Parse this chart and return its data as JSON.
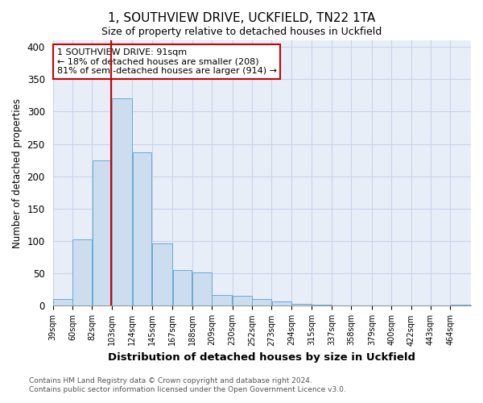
{
  "title": "1, SOUTHVIEW DRIVE, UCKFIELD, TN22 1TA",
  "subtitle": "Size of property relative to detached houses in Uckfield",
  "xlabel": "Distribution of detached houses by size in Uckfield",
  "ylabel": "Number of detached properties",
  "bin_labels": [
    "39sqm",
    "60sqm",
    "82sqm",
    "103sqm",
    "124sqm",
    "145sqm",
    "167sqm",
    "188sqm",
    "209sqm",
    "230sqm",
    "252sqm",
    "273sqm",
    "294sqm",
    "315sqm",
    "337sqm",
    "358sqm",
    "379sqm",
    "400sqm",
    "422sqm",
    "443sqm",
    "464sqm"
  ],
  "bar_heights": [
    10,
    103,
    225,
    320,
    237,
    96,
    55,
    52,
    17,
    15,
    10,
    7,
    3,
    2,
    1,
    1,
    1,
    1,
    1,
    1,
    2
  ],
  "bar_color": "#ccddf0",
  "bar_edge_color": "#6aaad4",
  "bin_edges": [
    28.5,
    49.5,
    70.5,
    91.5,
    113.5,
    134.5,
    156.5,
    177.5,
    198.5,
    220.5,
    241.5,
    262.5,
    283.5,
    305.5,
    326.5,
    347.5,
    369.5,
    390.5,
    411.5,
    432.5,
    453.5,
    475.5
  ],
  "annotation_line1": "1 SOUTHVIEW DRIVE: 91sqm",
  "annotation_line2": "← 18% of detached houses are smaller (208)",
  "annotation_line3": "81% of semi-detached houses are larger (914) →",
  "ann_box_color": "#ffffff",
  "ann_edge_color": "#cc0000",
  "vline_color": "#cc0000",
  "vline_x": 91,
  "ylim": [
    0,
    410
  ],
  "yticks": [
    0,
    50,
    100,
    150,
    200,
    250,
    300,
    350,
    400
  ],
  "grid_color": "#c8d4e8",
  "plot_bg_color": "#e8eef8",
  "fig_bg_color": "#ffffff",
  "footer_line1": "Contains HM Land Registry data © Crown copyright and database right 2024.",
  "footer_line2": "Contains public sector information licensed under the Open Government Licence v3.0."
}
